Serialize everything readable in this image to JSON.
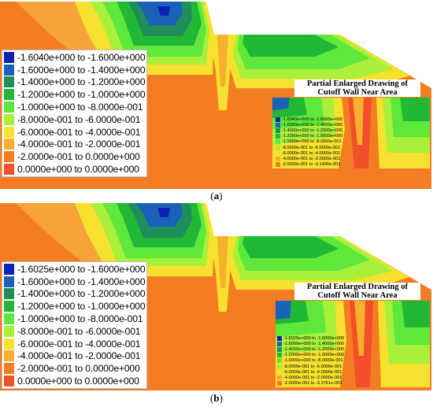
{
  "colors": [
    "#0a23b4",
    "#1a62b8",
    "#1f8e5a",
    "#20b834",
    "#5ee83b",
    "#a8f03a",
    "#f6e22e",
    "#f6b02c",
    "#f47d24",
    "#f2502a"
  ],
  "panel_a": {
    "caption_letter": "a",
    "legend": [
      "-1.6040e+000 to -1.6000e+000",
      "-1.6000e+000 to -1.4000e+000",
      "-1.4000e+000 to -1.2000e+000",
      "-1.2000e+000 to -1.0000e+000",
      "-1.0000e+000 to -8.0000e-001",
      "-8.0000e-001 to -6.0000e-001",
      "-6.0000e-001 to -4.0000e-001",
      "-4.0000e-001 to -2.0000e-001",
      "-2.0000e-001 to  0.0000e+000",
      " 0.0000e+000 to  0.0000e+000"
    ],
    "inset_title_line1": "Partial Enlarged Drawing of",
    "inset_title_line2": "Cutoff Wall Near Area",
    "inset_legend": [
      "-1.6040e+000 to -1.6000e+000",
      "-1.6000e+000 to -1.4000e+000",
      "-1.4000e+000 to -1.2000e+000",
      "-1.2000e+000 to -1.0000e+000",
      "-1.0000e+000 to -8.0000e-001",
      "-8.0000e-001 to -6.0000e-001",
      "-6.0000e-001 to -4.0000e-001",
      "-4.0000e-001 to -2.0000e-001",
      "-2.0000e-001 to -3.1496e-003"
    ]
  },
  "panel_b": {
    "caption_letter": "b",
    "legend": [
      "-1.6025e+000 to -1.6000e+000",
      "-1.6000e+000 to -1.4000e+000",
      "-1.4000e+000 to -1.2000e+000",
      "-1.2000e+000 to -1.0000e+000",
      "-1.0000e+000 to -8.0000e-001",
      "-8.0000e-001 to -6.0000e-001",
      "-6.0000e-001 to -4.0000e-001",
      "-4.0000e-001 to -2.0000e-001",
      "-2.0000e-001 to  0.0000e+000",
      " 0.0000e+000 to  0.0000e+000"
    ],
    "inset_title_line1": "Partial Enlarged Drawing of",
    "inset_title_line2": "Cutoff Wall Near Area",
    "inset_legend": [
      "-1.6025e+000 to -1.6000e+000",
      "-1.6000e+000 to -1.4000e+000",
      "-1.4000e+000 to -1.2000e+000",
      "-1.2000e+000 to -1.0000e+000",
      "-1.0000e+000 to -8.0000e-001",
      "-8.0000e-001 to -6.0000e-001",
      "-6.0000e-001 to -4.0000e-001",
      "-4.0000e-001 to -2.0000e-001",
      "-2.0000e-001 to -3.3761e-003"
    ]
  }
}
